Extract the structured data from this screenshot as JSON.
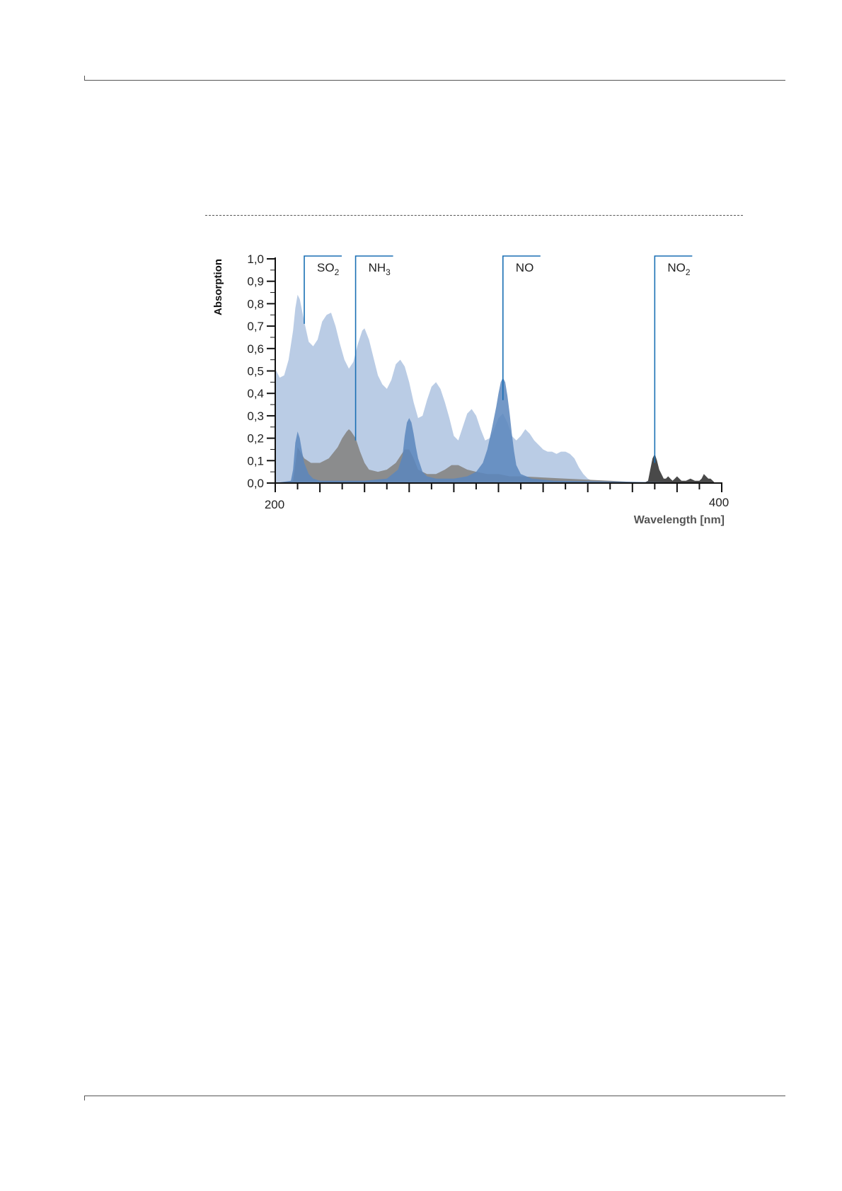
{
  "page": {
    "background": "#ffffff"
  },
  "chart_data": {
    "type": "area",
    "ylabel": "Absorption",
    "xlabel": "Wavelength [nm]",
    "x_tick_labels": [
      "200",
      "400"
    ],
    "y_tick_labels": [
      "0,0",
      "0,1",
      "0,2",
      "0,3",
      "0,4",
      "0,5",
      "0,6",
      "0,7",
      "0,8",
      "0,9",
      "1,0"
    ],
    "xlim": [
      200,
      400
    ],
    "ylim": [
      0,
      1.0
    ],
    "annotations": [
      {
        "name": "SO2",
        "base": "SO",
        "sub": "2",
        "x": 213,
        "y_low": 0.71
      },
      {
        "name": "NH3",
        "base": "NH",
        "sub": "3",
        "x": 236,
        "y_low": 0.19
      },
      {
        "name": "NO",
        "base": "NO",
        "sub": "",
        "x": 302,
        "y_low": 0.37
      },
      {
        "name": "NO2",
        "base": "NO",
        "sub": "2",
        "x": 370,
        "y_low": 0.09
      }
    ],
    "series": [
      {
        "color": "#b3c6e2",
        "points": [
          [
            200,
            0.51
          ],
          [
            202,
            0.47
          ],
          [
            204,
            0.48
          ],
          [
            206,
            0.55
          ],
          [
            208,
            0.68
          ],
          [
            209,
            0.78
          ],
          [
            210,
            0.84
          ],
          [
            211,
            0.82
          ],
          [
            213,
            0.72
          ],
          [
            215,
            0.63
          ],
          [
            217,
            0.61
          ],
          [
            219,
            0.64
          ],
          [
            221,
            0.72
          ],
          [
            223,
            0.75
          ],
          [
            225,
            0.76
          ],
          [
            227,
            0.7
          ],
          [
            229,
            0.62
          ],
          [
            231,
            0.55
          ],
          [
            233,
            0.51
          ],
          [
            235,
            0.54
          ],
          [
            237,
            0.62
          ],
          [
            239,
            0.68
          ],
          [
            240,
            0.69
          ],
          [
            242,
            0.64
          ],
          [
            244,
            0.56
          ],
          [
            246,
            0.48
          ],
          [
            248,
            0.44
          ],
          [
            250,
            0.42
          ],
          [
            252,
            0.46
          ],
          [
            254,
            0.53
          ],
          [
            256,
            0.55
          ],
          [
            258,
            0.52
          ],
          [
            260,
            0.45
          ],
          [
            262,
            0.36
          ],
          [
            264,
            0.29
          ],
          [
            266,
            0.3
          ],
          [
            268,
            0.37
          ],
          [
            270,
            0.43
          ],
          [
            272,
            0.45
          ],
          [
            274,
            0.42
          ],
          [
            276,
            0.36
          ],
          [
            278,
            0.29
          ],
          [
            280,
            0.21
          ],
          [
            282,
            0.19
          ],
          [
            284,
            0.25
          ],
          [
            286,
            0.31
          ],
          [
            288,
            0.33
          ],
          [
            290,
            0.3
          ],
          [
            292,
            0.24
          ],
          [
            294,
            0.19
          ],
          [
            296,
            0.2
          ],
          [
            298,
            0.24
          ],
          [
            300,
            0.29
          ],
          [
            302,
            0.31
          ],
          [
            304,
            0.27
          ],
          [
            306,
            0.21
          ],
          [
            308,
            0.19
          ],
          [
            310,
            0.21
          ],
          [
            312,
            0.24
          ],
          [
            314,
            0.22
          ],
          [
            316,
            0.19
          ],
          [
            318,
            0.17
          ],
          [
            320,
            0.15
          ],
          [
            322,
            0.14
          ],
          [
            324,
            0.14
          ],
          [
            326,
            0.13
          ],
          [
            328,
            0.14
          ],
          [
            330,
            0.14
          ],
          [
            332,
            0.13
          ],
          [
            334,
            0.11
          ],
          [
            336,
            0.07
          ],
          [
            338,
            0.04
          ],
          [
            340,
            0.02
          ],
          [
            342,
            0.01
          ],
          [
            345,
            0.01
          ],
          [
            350,
            0.0
          ],
          [
            400,
            0.0
          ]
        ]
      },
      {
        "color": "#888888",
        "points": [
          [
            200,
            0.0
          ],
          [
            208,
            0.01
          ],
          [
            210,
            0.16
          ],
          [
            213,
            0.11
          ],
          [
            216,
            0.09
          ],
          [
            220,
            0.09
          ],
          [
            224,
            0.11
          ],
          [
            228,
            0.16
          ],
          [
            230,
            0.2
          ],
          [
            232,
            0.23
          ],
          [
            233,
            0.24
          ],
          [
            234,
            0.23
          ],
          [
            236,
            0.2
          ],
          [
            238,
            0.14
          ],
          [
            240,
            0.09
          ],
          [
            242,
            0.06
          ],
          [
            246,
            0.05
          ],
          [
            250,
            0.06
          ],
          [
            254,
            0.09
          ],
          [
            256,
            0.12
          ],
          [
            258,
            0.15
          ],
          [
            260,
            0.15
          ],
          [
            262,
            0.11
          ],
          [
            264,
            0.06
          ],
          [
            268,
            0.04
          ],
          [
            272,
            0.04
          ],
          [
            276,
            0.06
          ],
          [
            279,
            0.08
          ],
          [
            282,
            0.08
          ],
          [
            286,
            0.06
          ],
          [
            290,
            0.05
          ],
          [
            295,
            0.04
          ],
          [
            300,
            0.04
          ],
          [
            305,
            0.03
          ],
          [
            310,
            0.03
          ],
          [
            330,
            0.02
          ],
          [
            350,
            0.01
          ],
          [
            360,
            0.005
          ],
          [
            400,
            0.0
          ]
        ]
      },
      {
        "color": "#3f3f3f",
        "points": [
          [
            365,
            0.0
          ],
          [
            367,
            0.01
          ],
          [
            368,
            0.06
          ],
          [
            369,
            0.11
          ],
          [
            370,
            0.13
          ],
          [
            371,
            0.1
          ],
          [
            372,
            0.06
          ],
          [
            373,
            0.04
          ],
          [
            374,
            0.02
          ],
          [
            375,
            0.02
          ],
          [
            376,
            0.03
          ],
          [
            377,
            0.02
          ],
          [
            378,
            0.01
          ],
          [
            379,
            0.02
          ],
          [
            380,
            0.03
          ],
          [
            381,
            0.02
          ],
          [
            382,
            0.01
          ],
          [
            384,
            0.01
          ],
          [
            386,
            0.02
          ],
          [
            388,
            0.01
          ],
          [
            390,
            0.01
          ],
          [
            391,
            0.02
          ],
          [
            392,
            0.04
          ],
          [
            393,
            0.03
          ],
          [
            394,
            0.02
          ],
          [
            395,
            0.02
          ],
          [
            396,
            0.01
          ],
          [
            397,
            0.0
          ]
        ]
      },
      {
        "color": "#5a86bd",
        "points": [
          [
            200,
            0.0
          ],
          [
            207,
            0.01
          ],
          [
            208,
            0.06
          ],
          [
            209,
            0.18
          ],
          [
            210,
            0.23
          ],
          [
            211,
            0.2
          ],
          [
            212,
            0.14
          ],
          [
            213,
            0.09
          ],
          [
            215,
            0.04
          ],
          [
            217,
            0.02
          ],
          [
            220,
            0.01
          ],
          [
            240,
            0.01
          ],
          [
            250,
            0.02
          ],
          [
            255,
            0.06
          ],
          [
            257,
            0.12
          ],
          [
            258,
            0.21
          ],
          [
            259,
            0.27
          ],
          [
            260,
            0.29
          ],
          [
            261,
            0.27
          ],
          [
            262,
            0.22
          ],
          [
            263,
            0.16
          ],
          [
            264,
            0.11
          ],
          [
            266,
            0.05
          ],
          [
            268,
            0.03
          ],
          [
            272,
            0.02
          ],
          [
            280,
            0.02
          ],
          [
            286,
            0.03
          ],
          [
            290,
            0.05
          ],
          [
            293,
            0.09
          ],
          [
            295,
            0.15
          ],
          [
            297,
            0.24
          ],
          [
            299,
            0.34
          ],
          [
            300,
            0.4
          ],
          [
            301,
            0.45
          ],
          [
            302,
            0.47
          ],
          [
            303,
            0.45
          ],
          [
            304,
            0.39
          ],
          [
            305,
            0.31
          ],
          [
            306,
            0.22
          ],
          [
            307,
            0.14
          ],
          [
            308,
            0.08
          ],
          [
            310,
            0.04
          ],
          [
            315,
            0.02
          ],
          [
            325,
            0.01
          ],
          [
            400,
            0.0
          ]
        ]
      }
    ]
  }
}
